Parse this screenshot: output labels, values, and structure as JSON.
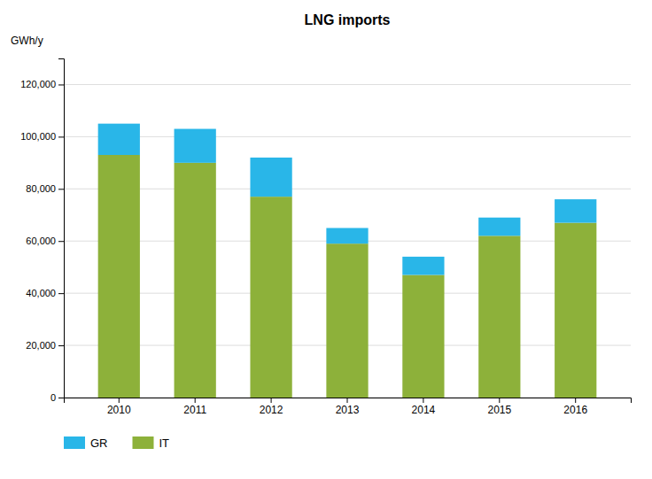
{
  "chart_data": {
    "type": "bar",
    "stacked": true,
    "title": "LNG imports",
    "ylabel": "GWh/y",
    "categories": [
      "2010",
      "2011",
      "2012",
      "2013",
      "2014",
      "2015",
      "2016"
    ],
    "series": [
      {
        "name": "IT",
        "color": "#8db13a",
        "values": [
          93000,
          90000,
          77000,
          59000,
          47000,
          62000,
          67000
        ]
      },
      {
        "name": "GR",
        "color": "#29b6e8",
        "values": [
          12000,
          13000,
          15000,
          6000,
          7000,
          7000,
          9000
        ]
      }
    ],
    "ylim": [
      0,
      130000
    ],
    "yticks": [
      0,
      {
        "value": 20000,
        "label": "20,000"
      },
      {
        "value": 40000,
        "label": "40,000"
      },
      {
        "value": 60000,
        "label": "60,000"
      },
      {
        "value": 80000,
        "label": "80,000"
      },
      {
        "value": 100000,
        "label": "100,000"
      },
      {
        "value": 120000,
        "label": "120,000"
      }
    ],
    "grid": true,
    "legend": "bottom"
  }
}
